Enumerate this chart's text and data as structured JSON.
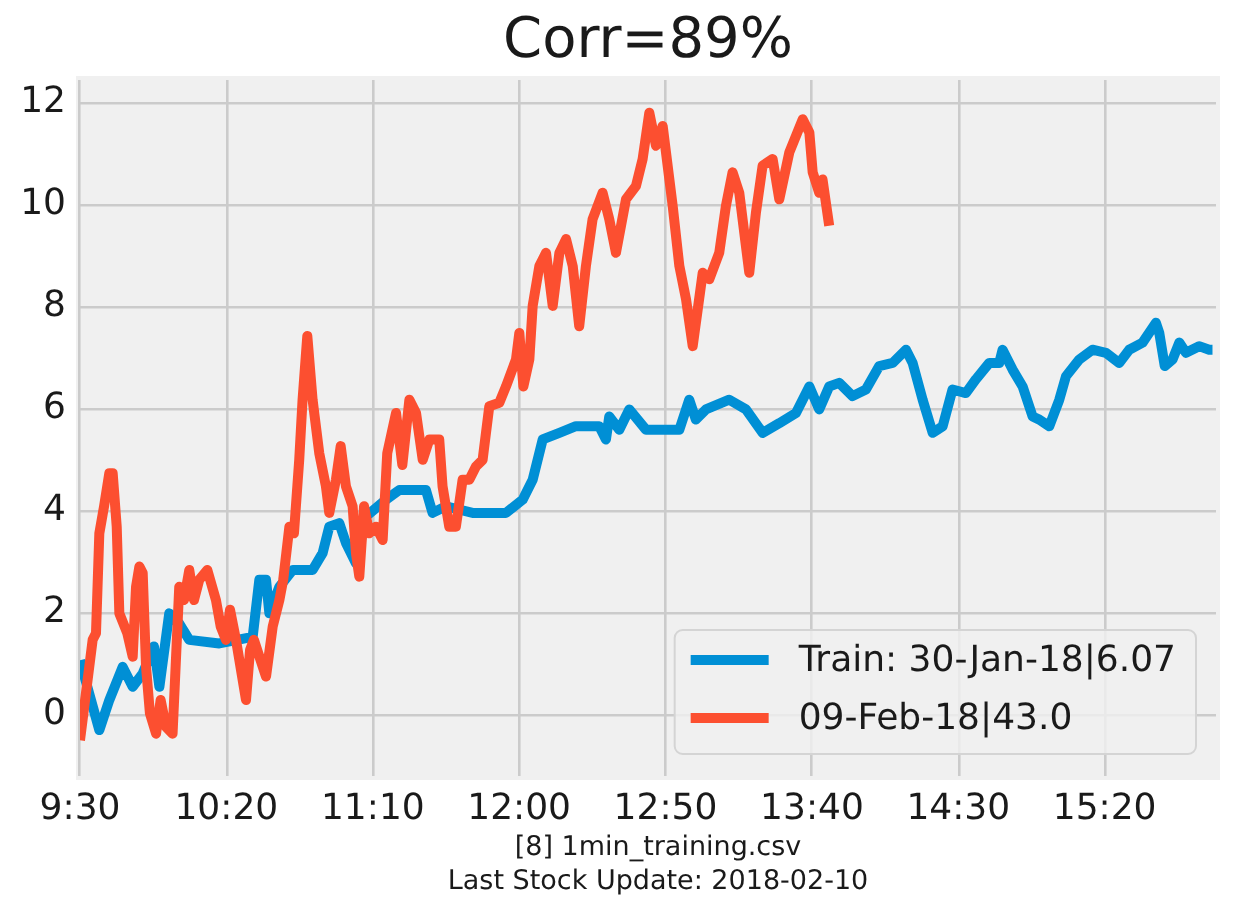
{
  "chart_data": {
    "type": "line",
    "title": "Corr=89%",
    "annotations": [
      "[8] 1min_training.csv",
      "Last Stock Update: 2018-02-10"
    ],
    "xlim": [
      9.5,
      15.967
    ],
    "xticks": [
      {
        "value": 9.5,
        "label": "9:30"
      },
      {
        "value": 10.333,
        "label": "10:20"
      },
      {
        "value": 11.167,
        "label": "11:10"
      },
      {
        "value": 12,
        "label": "12:00"
      },
      {
        "value": 12.833,
        "label": "12:50"
      },
      {
        "value": 13.667,
        "label": "13:40"
      },
      {
        "value": 14.5,
        "label": "14:30"
      },
      {
        "value": 15.333,
        "label": "15:20"
      }
    ],
    "ylim": [
      -1.2,
      12.45
    ],
    "yticks": [
      0,
      2,
      4,
      6,
      8,
      10,
      12
    ],
    "grid": true,
    "legend": "bottom right",
    "series": [
      {
        "name": "Train: 30-Jan-18|6.07",
        "color": "#008fd5",
        "x": [
          9.5,
          9.61,
          9.667,
          9.743,
          9.8,
          9.857,
          9.921,
          9.952,
          10.008,
          10.065,
          10.122,
          10.293,
          10.483,
          10.521,
          10.559,
          10.578,
          10.635,
          10.711,
          10.824,
          10.881,
          10.919,
          10.976,
          11.014,
          11.071,
          11.128,
          11.242,
          11.318,
          11.469,
          11.507,
          11.583,
          11.735,
          11.925,
          12.02,
          12.077,
          12.134,
          12.229,
          12.323,
          12.456,
          12.494,
          12.513,
          12.57,
          12.627,
          12.722,
          12.912,
          12.968,
          13.006,
          13.063,
          13.196,
          13.291,
          13.386,
          13.481,
          13.576,
          13.652,
          13.708,
          13.765,
          13.822,
          13.898,
          13.974,
          14.05,
          14.126,
          14.202,
          14.24,
          14.297,
          14.354,
          14.411,
          14.467,
          14.543,
          14.6,
          14.676,
          14.733,
          14.752,
          14.809,
          14.866,
          14.923,
          14.961,
          15.018,
          15.075,
          15.113,
          15.189,
          15.264,
          15.34,
          15.416,
          15.473,
          15.549,
          15.625,
          15.644,
          15.675,
          15.72,
          15.758,
          15.796,
          15.871,
          15.928,
          15.947
        ],
        "values": [
          1.07,
          -0.3,
          0.29,
          0.94,
          0.55,
          0.81,
          1.34,
          0.55,
          1.99,
          1.79,
          1.47,
          1.4,
          1.53,
          2.65,
          2.65,
          1.99,
          2.51,
          2.84,
          2.84,
          3.17,
          3.69,
          3.76,
          3.37,
          2.97,
          3.89,
          4.22,
          4.41,
          4.41,
          3.96,
          4.09,
          3.96,
          3.96,
          4.22,
          4.61,
          5.4,
          5.53,
          5.66,
          5.66,
          5.4,
          5.85,
          5.59,
          5.99,
          5.59,
          5.59,
          6.18,
          5.79,
          5.99,
          6.18,
          5.99,
          5.53,
          5.72,
          5.92,
          6.44,
          5.99,
          6.44,
          6.51,
          6.25,
          6.38,
          6.84,
          6.9,
          7.16,
          6.9,
          6.18,
          5.53,
          5.66,
          6.38,
          6.31,
          6.58,
          6.9,
          6.9,
          7.16,
          6.77,
          6.44,
          5.85,
          5.79,
          5.66,
          6.18,
          6.64,
          6.97,
          7.16,
          7.1,
          6.9,
          7.16,
          7.3,
          7.69,
          7.49,
          6.84,
          6.97,
          7.3,
          7.1,
          7.23,
          7.16,
          7.16
        ]
      },
      {
        "name": "09-Feb-18|43.0",
        "color": "#fc4f30",
        "x": [
          9.5,
          9.572,
          9.591,
          9.61,
          9.637,
          9.667,
          9.686,
          9.709,
          9.724,
          9.769,
          9.8,
          9.819,
          9.838,
          9.857,
          9.876,
          9.898,
          9.933,
          9.959,
          9.99,
          10.027,
          10.065,
          10.092,
          10.122,
          10.149,
          10.179,
          10.225,
          10.274,
          10.301,
          10.331,
          10.354,
          10.388,
          10.445,
          10.468,
          10.49,
          10.528,
          10.559,
          10.597,
          10.635,
          10.657,
          10.692,
          10.718,
          10.748,
          10.767,
          10.794,
          10.824,
          10.862,
          10.9,
          10.919,
          10.957,
          10.984,
          11.014,
          11.052,
          11.071,
          11.09,
          11.117,
          11.147,
          11.185,
          11.223,
          11.249,
          11.299,
          11.335,
          11.375,
          11.413,
          11.451,
          11.489,
          11.545,
          11.564,
          11.602,
          11.64,
          11.678,
          11.716,
          11.754,
          11.792,
          11.83,
          11.887,
          11.925,
          11.982,
          12.001,
          12.024,
          12.058,
          12.077,
          12.115,
          12.153,
          12.191,
          12.229,
          12.267,
          12.305,
          12.342,
          12.38,
          12.418,
          12.475,
          12.513,
          12.551,
          12.608,
          12.665,
          12.703,
          12.741,
          12.779,
          12.817,
          12.874,
          12.912,
          12.95,
          12.988,
          13.045,
          13.082,
          13.139,
          13.177,
          13.215,
          13.253,
          13.31,
          13.348,
          13.386,
          13.443,
          13.481,
          13.538,
          13.614,
          13.652,
          13.671,
          13.708,
          13.727,
          13.765
        ],
        "values": [
          -0.5,
          1.47,
          1.6,
          3.56,
          4.09,
          4.74,
          4.74,
          3.69,
          1.99,
          1.6,
          1.14,
          2.51,
          2.91,
          2.78,
          0.94,
          0.03,
          -0.37,
          0.29,
          -0.24,
          -0.37,
          2.51,
          2.25,
          2.84,
          2.25,
          2.65,
          2.84,
          2.25,
          1.73,
          1.47,
          2.06,
          1.47,
          0.29,
          1.27,
          1.47,
          1.07,
          0.75,
          1.73,
          2.25,
          2.65,
          3.69,
          3.56,
          5.0,
          6.18,
          7.43,
          6.18,
          5.13,
          4.48,
          3.96,
          4.61,
          5.27,
          4.48,
          4.09,
          3.17,
          2.71,
          4.09,
          3.56,
          3.69,
          3.43,
          5.13,
          5.92,
          4.9,
          6.18,
          5.92,
          5.0,
          5.4,
          5.4,
          4.48,
          3.69,
          3.69,
          4.61,
          4.61,
          4.87,
          5.0,
          6.05,
          6.12,
          6.44,
          6.97,
          7.49,
          6.44,
          6.97,
          8.02,
          8.8,
          9.06,
          8.02,
          9.06,
          9.33,
          8.8,
          7.62,
          8.8,
          9.72,
          10.24,
          9.72,
          9.06,
          10.11,
          10.37,
          10.9,
          11.81,
          11.16,
          11.55,
          9.98,
          8.8,
          8.15,
          7.23,
          8.67,
          8.54,
          9.06,
          9.98,
          10.64,
          10.24,
          8.67,
          9.85,
          10.77,
          10.9,
          10.11,
          11.03,
          11.68,
          11.42,
          10.64,
          10.24,
          10.5,
          9.59
        ]
      }
    ]
  }
}
